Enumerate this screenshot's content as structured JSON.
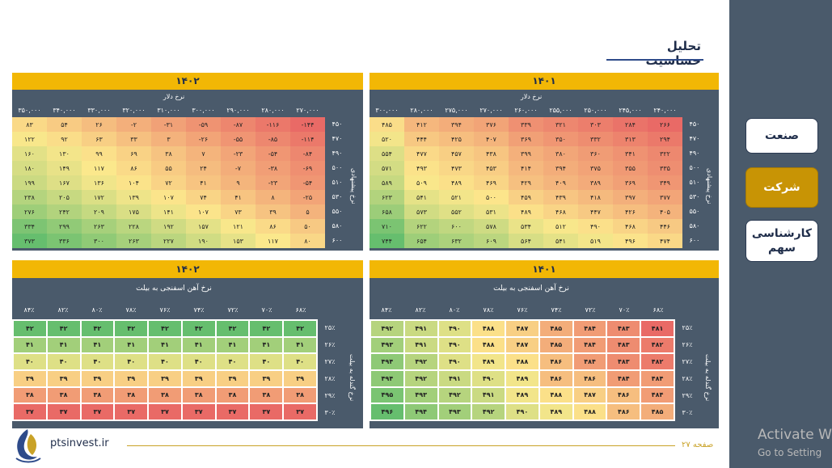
{
  "title": "تحلیل حساسیت",
  "nav": {
    "industry": "صنعت",
    "company": "شرکت",
    "expert": "کارشناسی سهم"
  },
  "footer": {
    "site": "ptsinvest.ir",
    "page": "صفحه ۲۷"
  },
  "watermark": {
    "title": "Activate W",
    "subtitle": "Go to Setting"
  },
  "tables": {
    "dollar_1402": {
      "year": "۱۴۰۲",
      "col_axis": "نرخ دلار",
      "row_axis": "نرخ پیشنهادی",
      "cols": [
        "۳۵۰,۰۰۰",
        "۳۴۰,۰۰۰",
        "۳۳۰,۰۰۰",
        "۳۲۰,۰۰۰",
        "۳۱۰,۰۰۰",
        "۳۰۰,۰۰۰",
        "۲۹۰,۰۰۰",
        "۲۸۰,۰۰۰",
        "۲۷۰,۰۰۰"
      ],
      "rows": [
        "۴۵۰",
        "۴۷۰",
        "۴۹۰",
        "۵۰۰",
        "۵۱۰",
        "۵۳۰",
        "۵۵۰",
        "۵۸۰",
        "۶۰۰"
      ],
      "cells": [
        [
          "۸۳",
          "۵۴",
          "۲۶",
          "-۲",
          "-۳۱",
          "-۵۹",
          "-۸۷",
          "-۱۱۶",
          "-۱۴۴"
        ],
        [
          "۱۲۲",
          "۹۲",
          "۶۳",
          "۳۳",
          "۳",
          "-۲۶",
          "-۵۵",
          "-۸۵",
          "-۱۱۴"
        ],
        [
          "۱۶۰",
          "۱۳۰",
          "۹۹",
          "۶۹",
          "۳۸",
          "۷",
          "-۲۳",
          "-۵۴",
          "-۸۴"
        ],
        [
          "۱۸۰",
          "۱۴۹",
          "۱۱۷",
          "۸۶",
          "۵۵",
          "۲۴",
          "-۷",
          "-۳۸",
          "-۶۹"
        ],
        [
          "۱۹۹",
          "۱۶۷",
          "۱۳۶",
          "۱۰۴",
          "۷۲",
          "۴۱",
          "۹",
          "-۲۳",
          "-۵۴"
        ],
        [
          "۲۳۸",
          "۲۰۵",
          "۱۷۲",
          "۱۳۹",
          "۱۰۷",
          "۷۴",
          "۴۱",
          "۸",
          "-۲۵"
        ],
        [
          "۲۷۶",
          "۲۴۲",
          "۲۰۹",
          "۱۷۵",
          "۱۴۱",
          "۱۰۷",
          "۷۳",
          "۳۹",
          "۵"
        ],
        [
          "۳۳۴",
          "۲۹۹",
          "۲۶۳",
          "۲۲۸",
          "۱۹۲",
          "۱۵۷",
          "۱۲۱",
          "۸۶",
          "۵۰"
        ],
        [
          "۳۷۳",
          "۳۳۶",
          "۳۰۰",
          "۲۶۳",
          "۲۲۷",
          "۱۹۰",
          "۱۵۳",
          "۱۱۷",
          "۸۰"
        ]
      ],
      "nums": [
        [
          83,
          54,
          26,
          -2,
          -31,
          -59,
          -87,
          -116,
          -144
        ],
        [
          122,
          92,
          63,
          33,
          3,
          -26,
          -55,
          -85,
          -114
        ],
        [
          160,
          130,
          99,
          69,
          38,
          7,
          -23,
          -54,
          -84
        ],
        [
          180,
          149,
          117,
          86,
          55,
          24,
          -7,
          -38,
          -69
        ],
        [
          199,
          167,
          136,
          104,
          72,
          41,
          9,
          -23,
          -54
        ],
        [
          238,
          205,
          172,
          139,
          107,
          74,
          41,
          8,
          -25
        ],
        [
          276,
          242,
          209,
          175,
          141,
          107,
          73,
          39,
          5
        ],
        [
          334,
          299,
          263,
          228,
          192,
          157,
          121,
          86,
          50
        ],
        [
          373,
          336,
          300,
          263,
          227,
          190,
          153,
          117,
          80
        ]
      ]
    },
    "dollar_1401": {
      "year": "۱۴۰۱",
      "col_axis": "نرخ دلار",
      "row_axis": "نرخ پیشنهادی",
      "cols": [
        "۳۰۰,۰۰۰",
        "۲۸۰,۰۰۰",
        "۲۷۵,۰۰۰",
        "۲۷۰,۰۰۰",
        "۲۶۰,۰۰۰",
        "۲۵۵,۰۰۰",
        "۲۵۰,۰۰۰",
        "۲۴۵,۰۰۰",
        "۲۴۰,۰۰۰"
      ],
      "rows": [
        "۴۵۰",
        "۴۷۰",
        "۴۹۰",
        "۵۰۰",
        "۵۱۰",
        "۵۳۰",
        "۵۵۰",
        "۵۸۰",
        "۶۰۰"
      ],
      "cells": [
        [
          "۴۸۵",
          "۴۱۲",
          "۳۹۴",
          "۳۷۶",
          "۳۳۹",
          "۳۲۱",
          "۳۰۳",
          "۲۸۴",
          "۲۶۶"
        ],
        [
          "۵۲۰",
          "۴۴۴",
          "۴۲۵",
          "۴۰۷",
          "۳۶۹",
          "۳۵۰",
          "۳۳۲",
          "۳۱۳",
          "۲۹۴"
        ],
        [
          "۵۵۴",
          "۴۷۷",
          "۴۵۷",
          "۴۳۸",
          "۳۹۹",
          "۳۸۰",
          "۳۶۰",
          "۳۴۱",
          "۳۲۲"
        ],
        [
          "۵۷۱",
          "۴۹۳",
          "۴۷۳",
          "۴۵۳",
          "۴۱۴",
          "۳۹۴",
          "۳۷۵",
          "۳۵۵",
          "۳۳۵"
        ],
        [
          "۵۸۹",
          "۵۰۹",
          "۴۸۹",
          "۴۶۹",
          "۴۲۹",
          "۴۰۹",
          "۳۸۹",
          "۳۶۹",
          "۳۴۹"
        ],
        [
          "۶۲۳",
          "۵۴۱",
          "۵۲۱",
          "۵۰۰",
          "۴۵۹",
          "۴۳۹",
          "۴۱۸",
          "۳۹۷",
          "۳۷۷"
        ],
        [
          "۶۵۸",
          "۵۷۳",
          "۵۵۲",
          "۵۳۱",
          "۴۸۹",
          "۴۶۸",
          "۴۴۷",
          "۴۲۶",
          "۴۰۵"
        ],
        [
          "۷۱۰",
          "۶۲۲",
          "۶۰۰",
          "۵۷۸",
          "۵۳۴",
          "۵۱۲",
          "۴۹۰",
          "۴۶۸",
          "۴۴۶"
        ],
        [
          "۷۴۴",
          "۶۵۴",
          "۶۳۲",
          "۶۰۹",
          "۵۶۴",
          "۵۴۱",
          "۵۱۹",
          "۴۹۶",
          "۴۷۴"
        ]
      ],
      "nums": [
        [
          485,
          412,
          394,
          376,
          339,
          321,
          303,
          284,
          266
        ],
        [
          520,
          444,
          425,
          407,
          369,
          350,
          332,
          313,
          294
        ],
        [
          554,
          477,
          457,
          438,
          399,
          380,
          360,
          341,
          322
        ],
        [
          571,
          493,
          473,
          453,
          414,
          394,
          375,
          355,
          335
        ],
        [
          589,
          509,
          489,
          469,
          429,
          409,
          389,
          369,
          349
        ],
        [
          623,
          541,
          521,
          500,
          459,
          439,
          418,
          397,
          377
        ],
        [
          658,
          573,
          552,
          531,
          489,
          468,
          447,
          426,
          405
        ],
        [
          710,
          622,
          600,
          578,
          534,
          512,
          490,
          468,
          446
        ],
        [
          744,
          654,
          632,
          609,
          564,
          541,
          519,
          496,
          474
        ]
      ]
    },
    "ore_1402": {
      "year": "۱۴۰۲",
      "col_axis": "نرخ آهن اسفنجی به بیلت",
      "row_axis": "نرخ گندله به بیلت",
      "cols": [
        "۸۴٪",
        "۸۲٪",
        "۸۰٪",
        "۷۸٪",
        "۷۶٪",
        "۷۴٪",
        "۷۲٪",
        "۷۰٪",
        "۶۸٪"
      ],
      "rows": [
        "۲۵٪",
        "۲۶٪",
        "۲۷٪",
        "۲۸٪",
        "۲۹٪",
        "۳۰٪"
      ],
      "cells": [
        [
          "۴۲",
          "۴۲",
          "۴۲",
          "۴۲",
          "۴۲",
          "۴۲",
          "۴۲",
          "۴۲",
          "۴۲"
        ],
        [
          "۴۱",
          "۴۱",
          "۴۱",
          "۴۱",
          "۴۱",
          "۴۱",
          "۴۱",
          "۴۱",
          "۴۱"
        ],
        [
          "۴۰",
          "۴۰",
          "۴۰",
          "۴۰",
          "۴۰",
          "۴۰",
          "۴۰",
          "۴۰",
          "۴۰"
        ],
        [
          "۳۹",
          "۳۹",
          "۳۹",
          "۳۹",
          "۳۹",
          "۳۹",
          "۳۹",
          "۳۹",
          "۳۹"
        ],
        [
          "۳۸",
          "۳۸",
          "۳۸",
          "۳۸",
          "۳۸",
          "۳۸",
          "۳۸",
          "۳۸",
          "۳۸"
        ],
        [
          "۳۷",
          "۳۷",
          "۳۷",
          "۳۷",
          "۳۷",
          "۳۷",
          "۳۷",
          "۳۷",
          "۳۷"
        ]
      ],
      "nums": [
        [
          42,
          42,
          42,
          42,
          42,
          42,
          42,
          42,
          42
        ],
        [
          41,
          41,
          41,
          41,
          41,
          41,
          41,
          41,
          41
        ],
        [
          40,
          40,
          40,
          40,
          40,
          40,
          40,
          40,
          40
        ],
        [
          39,
          39,
          39,
          39,
          39,
          39,
          39,
          39,
          39
        ],
        [
          38,
          38,
          38,
          38,
          38,
          38,
          38,
          38,
          38
        ],
        [
          37,
          37,
          37,
          37,
          37,
          37,
          37,
          37,
          37
        ]
      ]
    },
    "ore_1401": {
      "year": "۱۴۰۱",
      "col_axis": "نرخ آهن اسفنجی به بیلت",
      "row_axis": "نرخ گندله به بیلت",
      "cols": [
        "۸۴٪",
        "۸۲٪",
        "۸۰٪",
        "۷۸٪",
        "۷۶٪",
        "۷۴٪",
        "۷۲٪",
        "۷۰٪",
        "۶۸٪"
      ],
      "rows": [
        "۲۵٪",
        "۲۶٪",
        "۲۷٪",
        "۲۸٪",
        "۲۹٪",
        "۳۰٪"
      ],
      "cells": [
        [
          "۴۹۲",
          "۴۹۱",
          "۴۹۰",
          "۴۸۸",
          "۴۸۷",
          "۴۸۵",
          "۴۸۴",
          "۴۸۳",
          "۴۸۱"
        ],
        [
          "۴۹۳",
          "۴۹۱",
          "۴۹۰",
          "۴۸۸",
          "۴۸۷",
          "۴۸۵",
          "۴۸۴",
          "۴۸۳",
          "۴۸۲"
        ],
        [
          "۴۹۴",
          "۴۹۲",
          "۴۹۰",
          "۴۸۹",
          "۴۸۸",
          "۴۸۶",
          "۴۸۴",
          "۴۸۳",
          "۴۸۲"
        ],
        [
          "۴۹۴",
          "۴۹۲",
          "۴۹۱",
          "۴۹۰",
          "۴۸۹",
          "۴۸۶",
          "۴۸۶",
          "۴۸۴",
          "۴۸۴"
        ],
        [
          "۴۹۵",
          "۴۹۳",
          "۴۹۲",
          "۴۹۱",
          "۴۸۹",
          "۴۸۸",
          "۴۸۷",
          "۴۸۶",
          "۴۸۴"
        ],
        [
          "۴۹۶",
          "۴۹۴",
          "۴۹۳",
          "۴۹۲",
          "۴۹۰",
          "۴۸۹",
          "۴۸۸",
          "۴۸۶",
          "۴۸۵"
        ]
      ],
      "nums": [
        [
          492,
          491,
          490,
          488,
          487,
          485,
          484,
          483,
          481
        ],
        [
          493,
          491,
          490,
          488,
          487,
          485,
          484,
          483,
          482
        ],
        [
          494,
          492,
          490,
          489,
          488,
          486,
          484,
          483,
          482
        ],
        [
          494,
          492,
          491,
          490,
          489,
          486,
          486,
          484,
          484
        ],
        [
          495,
          493,
          492,
          491,
          489,
          488,
          487,
          486,
          484
        ],
        [
          496,
          494,
          493,
          492,
          490,
          489,
          488,
          486,
          485
        ]
      ]
    }
  }
}
